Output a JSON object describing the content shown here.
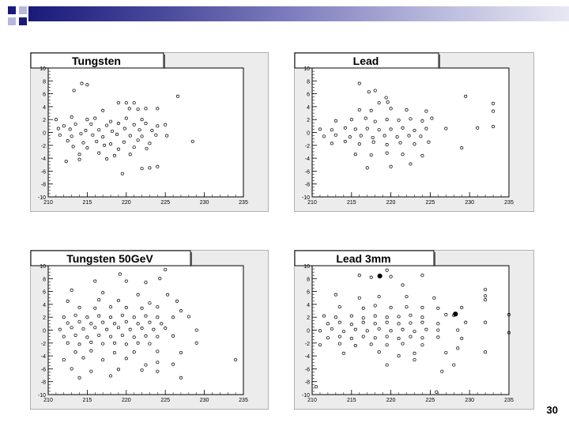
{
  "slide": {
    "page_number": "30",
    "band_colors": [
      "#1a1a7a",
      "#4a4a9c",
      "#8080c0",
      "#b8b8dc",
      "#e8e8f4"
    ]
  },
  "chart_data": [
    {
      "type": "scatter",
      "title": "Tungsten",
      "xlabel": "",
      "ylabel": "",
      "xlim": [
        210,
        235
      ],
      "ylim": [
        -10,
        10
      ],
      "xticks": [
        "210",
        "215",
        "220",
        "225",
        "230",
        "235"
      ],
      "yticks": [
        "-10",
        "-8",
        "-6",
        "-4",
        "-2",
        "0",
        "2",
        "4",
        "6",
        "8",
        "10"
      ],
      "grid": false,
      "points": [
        [
          214.3,
          7.6
        ],
        [
          215.0,
          7.4
        ],
        [
          213.3,
          6.5
        ],
        [
          226.6,
          5.6
        ],
        [
          219.0,
          4.6
        ],
        [
          220.0,
          4.6
        ],
        [
          221.0,
          4.6
        ],
        [
          217.0,
          3.4
        ],
        [
          220.4,
          3.7
        ],
        [
          221.5,
          3.6
        ],
        [
          222.5,
          3.7
        ],
        [
          224.0,
          3.7
        ],
        [
          211.0,
          2.0
        ],
        [
          213.0,
          2.4
        ],
        [
          215.0,
          2.0
        ],
        [
          216.0,
          2.2
        ],
        [
          218.0,
          1.7
        ],
        [
          220.0,
          2.2
        ],
        [
          222.0,
          2.0
        ],
        [
          212.0,
          1.0
        ],
        [
          213.5,
          1.3
        ],
        [
          215.5,
          1.3
        ],
        [
          217.5,
          1.1
        ],
        [
          219.0,
          1.4
        ],
        [
          221.0,
          1.2
        ],
        [
          222.5,
          1.4
        ],
        [
          224.0,
          1.0
        ],
        [
          225.0,
          1.2
        ],
        [
          211.3,
          0.6
        ],
        [
          212.8,
          0.5
        ],
        [
          214.8,
          0.3
        ],
        [
          216.5,
          0.4
        ],
        [
          218.2,
          0.2
        ],
        [
          219.8,
          0.6
        ],
        [
          221.7,
          0.4
        ],
        [
          223.3,
          0.3
        ],
        [
          211.5,
          -0.4
        ],
        [
          213.0,
          -0.6
        ],
        [
          214.2,
          -0.2
        ],
        [
          215.7,
          -0.4
        ],
        [
          217.0,
          -0.7
        ],
        [
          218.8,
          -0.3
        ],
        [
          220.5,
          -0.5
        ],
        [
          222.0,
          -0.6
        ],
        [
          223.8,
          -0.4
        ],
        [
          225.2,
          -0.5
        ],
        [
          212.5,
          -1.3
        ],
        [
          214.5,
          -1.6
        ],
        [
          216.2,
          -1.4
        ],
        [
          218.0,
          -1.8
        ],
        [
          219.7,
          -1.5
        ],
        [
          221.5,
          -1.2
        ],
        [
          223.0,
          -1.7
        ],
        [
          213.2,
          -2.2
        ],
        [
          215.0,
          -2.4
        ],
        [
          217.2,
          -2.0
        ],
        [
          219.0,
          -2.6
        ],
        [
          221.0,
          -2.3
        ],
        [
          222.6,
          -2.5
        ],
        [
          228.5,
          -1.4
        ],
        [
          214.0,
          -3.4
        ],
        [
          216.5,
          -3.2
        ],
        [
          218.5,
          -3.6
        ],
        [
          220.5,
          -3.4
        ],
        [
          212.3,
          -4.5
        ],
        [
          214.0,
          -4.2
        ],
        [
          217.5,
          -4.1
        ],
        [
          222.0,
          -5.6
        ],
        [
          223.0,
          -5.5
        ],
        [
          224.0,
          -5.3
        ],
        [
          219.5,
          -6.4
        ]
      ]
    },
    {
      "type": "scatter",
      "title": "Lead",
      "xlabel": "",
      "ylabel": "",
      "xlim": [
        210,
        235
      ],
      "ylim": [
        -10,
        10
      ],
      "xticks": [
        "210",
        "215",
        "220",
        "225",
        "230",
        "235"
      ],
      "yticks": [
        "-10",
        "-8",
        "-6",
        "-4",
        "-2",
        "0",
        "2",
        "4",
        "6",
        "8",
        "10"
      ],
      "grid": false,
      "points": [
        [
          216.0,
          7.6
        ],
        [
          217.2,
          6.3
        ],
        [
          218.0,
          6.5
        ],
        [
          219.4,
          5.4
        ],
        [
          219.6,
          4.7
        ],
        [
          218.5,
          4.6
        ],
        [
          216.0,
          3.5
        ],
        [
          217.5,
          3.4
        ],
        [
          220.0,
          3.7
        ],
        [
          222.0,
          3.5
        ],
        [
          224.5,
          3.3
        ],
        [
          229.5,
          5.6
        ],
        [
          233.0,
          4.5
        ],
        [
          233.0,
          3.3
        ],
        [
          213.0,
          1.8
        ],
        [
          215.0,
          2.0
        ],
        [
          216.8,
          2.2
        ],
        [
          218.0,
          1.7
        ],
        [
          219.5,
          2.0
        ],
        [
          221.0,
          1.9
        ],
        [
          222.5,
          2.1
        ],
        [
          224.0,
          1.8
        ],
        [
          225.2,
          2.2
        ],
        [
          211.0,
          0.5
        ],
        [
          212.5,
          0.4
        ],
        [
          214.2,
          0.7
        ],
        [
          215.5,
          0.5
        ],
        [
          217.0,
          0.6
        ],
        [
          218.5,
          0.4
        ],
        [
          220.0,
          0.5
        ],
        [
          221.5,
          0.7
        ],
        [
          223.0,
          0.3
        ],
        [
          224.5,
          0.6
        ],
        [
          227.0,
          0.6
        ],
        [
          231.0,
          0.7
        ],
        [
          233.0,
          0.9
        ],
        [
          211.5,
          -0.6
        ],
        [
          213.0,
          -0.4
        ],
        [
          214.8,
          -0.7
        ],
        [
          216.2,
          -0.5
        ],
        [
          217.7,
          -0.8
        ],
        [
          219.2,
          -0.5
        ],
        [
          220.8,
          -0.7
        ],
        [
          222.3,
          -0.5
        ],
        [
          223.8,
          -0.6
        ],
        [
          212.5,
          -1.7
        ],
        [
          214.2,
          -1.4
        ],
        [
          216.0,
          -1.8
        ],
        [
          217.8,
          -1.5
        ],
        [
          219.5,
          -1.9
        ],
        [
          221.2,
          -1.6
        ],
        [
          223.0,
          -1.8
        ],
        [
          224.8,
          -1.5
        ],
        [
          215.5,
          -3.4
        ],
        [
          217.5,
          -3.5
        ],
        [
          219.5,
          -3.2
        ],
        [
          221.5,
          -3.4
        ],
        [
          224.0,
          -3.6
        ],
        [
          217.0,
          -5.5
        ],
        [
          220.0,
          -5.3
        ],
        [
          222.5,
          -4.9
        ],
        [
          229.0,
          -2.4
        ]
      ]
    },
    {
      "type": "scatter",
      "title": "Tungsten 50GeV",
      "xlabel": "",
      "ylabel": "",
      "xlim": [
        210,
        235
      ],
      "ylim": [
        -10,
        10
      ],
      "xticks": [
        "210",
        "215",
        "220",
        "225",
        "230",
        "235"
      ],
      "yticks": [
        "-10",
        "-8",
        "-6",
        "-4",
        "-2",
        "0",
        "2",
        "4",
        "6",
        "8",
        "10"
      ],
      "grid": false,
      "points": [
        [
          225.0,
          9.4
        ],
        [
          219.2,
          8.7
        ],
        [
          224.3,
          8.0
        ],
        [
          216.0,
          7.6
        ],
        [
          220.0,
          7.6
        ],
        [
          222.5,
          7.4
        ],
        [
          213.0,
          6.2
        ],
        [
          217.0,
          5.8
        ],
        [
          221.5,
          5.5
        ],
        [
          225.3,
          5.5
        ],
        [
          212.5,
          4.5
        ],
        [
          216.5,
          4.7
        ],
        [
          219.0,
          4.6
        ],
        [
          223.0,
          4.2
        ],
        [
          226.5,
          4.5
        ],
        [
          214.0,
          3.5
        ],
        [
          216.0,
          3.4
        ],
        [
          218.0,
          3.6
        ],
        [
          220.0,
          3.5
        ],
        [
          222.0,
          3.4
        ],
        [
          224.0,
          3.6
        ],
        [
          227.0,
          3.0
        ],
        [
          212.0,
          2.0
        ],
        [
          213.5,
          2.3
        ],
        [
          215.0,
          2.0
        ],
        [
          216.5,
          2.2
        ],
        [
          218.0,
          2.0
        ],
        [
          219.5,
          2.3
        ],
        [
          221.0,
          2.0
        ],
        [
          222.5,
          2.2
        ],
        [
          224.0,
          2.0
        ],
        [
          226.0,
          2.0
        ],
        [
          228.0,
          2.1
        ],
        [
          212.5,
          1.1
        ],
        [
          214.0,
          1.3
        ],
        [
          215.5,
          1.0
        ],
        [
          217.0,
          1.2
        ],
        [
          218.5,
          1.0
        ],
        [
          220.0,
          1.3
        ],
        [
          221.5,
          1.0
        ],
        [
          223.0,
          1.2
        ],
        [
          224.5,
          1.0
        ],
        [
          211.5,
          0.1
        ],
        [
          213.0,
          0.4
        ],
        [
          214.5,
          0.2
        ],
        [
          216.0,
          0.4
        ],
        [
          217.5,
          0.1
        ],
        [
          219.0,
          0.4
        ],
        [
          220.5,
          0.1
        ],
        [
          222.0,
          0.3
        ],
        [
          223.5,
          0.1
        ],
        [
          225.0,
          0.3
        ],
        [
          229.0,
          0.0
        ],
        [
          212.0,
          -1.0
        ],
        [
          213.5,
          -0.8
        ],
        [
          215.0,
          -1.1
        ],
        [
          216.5,
          -0.8
        ],
        [
          218.0,
          -1.0
        ],
        [
          219.5,
          -0.8
        ],
        [
          221.0,
          -1.1
        ],
        [
          222.5,
          -0.9
        ],
        [
          224.0,
          -1.0
        ],
        [
          226.0,
          -0.9
        ],
        [
          212.5,
          -2.0
        ],
        [
          214.0,
          -2.2
        ],
        [
          215.5,
          -1.9
        ],
        [
          217.0,
          -2.1
        ],
        [
          218.5,
          -2.0
        ],
        [
          220.0,
          -2.2
        ],
        [
          221.5,
          -2.0
        ],
        [
          223.0,
          -2.1
        ],
        [
          229.0,
          -2.0
        ],
        [
          213.5,
          -3.4
        ],
        [
          215.5,
          -3.2
        ],
        [
          218.5,
          -3.5
        ],
        [
          221.0,
          -3.4
        ],
        [
          224.0,
          -3.3
        ],
        [
          227.0,
          -3.5
        ],
        [
          212.0,
          -4.6
        ],
        [
          214.5,
          -4.3
        ],
        [
          217.0,
          -4.6
        ],
        [
          220.0,
          -4.4
        ],
        [
          222.5,
          -5.4
        ],
        [
          224.0,
          -5.0
        ],
        [
          226.0,
          -5.3
        ],
        [
          234.0,
          -4.6
        ],
        [
          213.0,
          -6.0
        ],
        [
          215.5,
          -6.4
        ],
        [
          219.0,
          -6.1
        ],
        [
          222.0,
          -6.2
        ],
        [
          224.0,
          -6.4
        ],
        [
          227.0,
          -7.4
        ],
        [
          214.0,
          -7.4
        ],
        [
          218.0,
          -7.1
        ]
      ]
    },
    {
      "type": "scatter",
      "title": "Lead 3mm",
      "xlabel": "",
      "ylabel": "",
      "xlim": [
        210,
        235
      ],
      "ylim": [
        -10,
        10
      ],
      "xticks": [
        "210",
        "215",
        "220",
        "225",
        "230",
        "235"
      ],
      "yticks": [
        "-10",
        "-8",
        "-6",
        "-4",
        "-2",
        "0",
        "2",
        "4",
        "6",
        "8",
        "10"
      ],
      "grid": false,
      "points": [
        [
          219.5,
          9.3
        ],
        [
          216.0,
          8.5
        ],
        [
          217.5,
          8.2
        ],
        [
          220.0,
          8.3
        ],
        [
          224.0,
          8.5
        ],
        [
          221.5,
          7.0
        ],
        [
          232.0,
          6.3
        ],
        [
          232.0,
          5.3
        ],
        [
          213.0,
          5.5
        ],
        [
          216.0,
          5.0
        ],
        [
          218.5,
          5.2
        ],
        [
          222.0,
          5.2
        ],
        [
          225.5,
          5.0
        ],
        [
          232.0,
          4.7
        ],
        [
          213.5,
          3.6
        ],
        [
          216.5,
          3.4
        ],
        [
          218.0,
          3.8
        ],
        [
          220.0,
          3.5
        ],
        [
          222.0,
          3.6
        ],
        [
          224.0,
          3.5
        ],
        [
          226.0,
          3.4
        ],
        [
          229.0,
          3.5
        ],
        [
          211.5,
          2.2
        ],
        [
          213.0,
          2.0
        ],
        [
          215.0,
          2.2
        ],
        [
          216.5,
          1.9
        ],
        [
          218.0,
          2.2
        ],
        [
          219.5,
          2.0
        ],
        [
          221.0,
          2.1
        ],
        [
          222.5,
          2.3
        ],
        [
          224.0,
          2.0
        ],
        [
          227.0,
          2.4
        ],
        [
          228.0,
          2.3
        ],
        [
          235.0,
          2.4
        ],
        [
          212.0,
          1.0
        ],
        [
          213.5,
          1.2
        ],
        [
          215.0,
          0.9
        ],
        [
          216.5,
          1.2
        ],
        [
          218.0,
          1.0
        ],
        [
          219.5,
          1.2
        ],
        [
          221.0,
          1.0
        ],
        [
          222.5,
          1.1
        ],
        [
          224.0,
          1.2
        ],
        [
          226.0,
          1.0
        ],
        [
          229.5,
          1.2
        ],
        [
          232.0,
          1.2
        ],
        [
          211.0,
          -0.1
        ],
        [
          212.5,
          0.2
        ],
        [
          214.0,
          -0.2
        ],
        [
          215.5,
          0.1
        ],
        [
          217.0,
          -0.1
        ],
        [
          218.5,
          0.2
        ],
        [
          220.0,
          -0.1
        ],
        [
          221.5,
          0.1
        ],
        [
          223.0,
          -0.2
        ],
        [
          224.5,
          0.1
        ],
        [
          226.0,
          0.0
        ],
        [
          228.5,
          0.0
        ],
        [
          235.0,
          -0.4
        ],
        [
          212.0,
          -1.2
        ],
        [
          213.5,
          -1.0
        ],
        [
          215.0,
          -1.3
        ],
        [
          216.5,
          -1.0
        ],
        [
          218.0,
          -1.2
        ],
        [
          219.5,
          -1.0
        ],
        [
          221.0,
          -1.3
        ],
        [
          222.5,
          -1.0
        ],
        [
          224.0,
          -1.2
        ],
        [
          226.0,
          -1.1
        ],
        [
          229.0,
          -1.3
        ],
        [
          211.0,
          -2.3
        ],
        [
          213.5,
          -2.1
        ],
        [
          215.5,
          -2.4
        ],
        [
          217.5,
          -2.2
        ],
        [
          219.5,
          -2.3
        ],
        [
          221.5,
          -2.1
        ],
        [
          224.0,
          -2.3
        ],
        [
          228.5,
          -2.8
        ],
        [
          214.0,
          -3.6
        ],
        [
          218.5,
          -3.4
        ],
        [
          221.0,
          -4.0
        ],
        [
          223.0,
          -3.6
        ],
        [
          227.0,
          -3.5
        ],
        [
          232.0,
          -3.4
        ],
        [
          219.5,
          -5.4
        ],
        [
          223.0,
          -4.6
        ],
        [
          228.0,
          -5.4
        ],
        [
          226.5,
          -6.4
        ],
        [
          210.5,
          -8.8
        ],
        [
          225.8,
          -9.6
        ]
      ],
      "filled_points": [
        [
          228.2,
          2.5
        ],
        [
          218.6,
          8.4
        ]
      ]
    }
  ]
}
